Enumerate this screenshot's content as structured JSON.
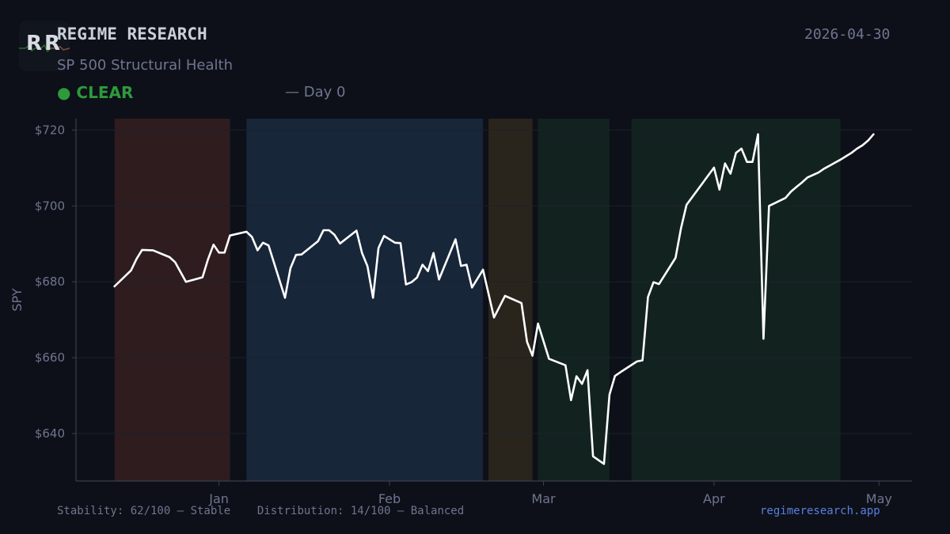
{
  "header": {
    "logo_text": "RR",
    "brand": "REGIME RESEARCH",
    "date": "2026-04-30",
    "subtitle": "SP 500 Structural Health",
    "status_dot": "●",
    "status": "CLEAR",
    "day": "— Day 0",
    "status_color": "#2e9a3c"
  },
  "footer": {
    "stability": "Stability: 62/100 — Stable",
    "distribution": "Distribution: 14/100 — Balanced",
    "site": "regimeresearch.app"
  },
  "chart_data": {
    "type": "line",
    "ylabel": "SPY",
    "ylim": [
      627.5,
      723
    ],
    "y_ticks": [
      640,
      660,
      680,
      700,
      720
    ],
    "y_tick_labels": [
      "$640",
      "$660",
      "$680",
      "$700",
      "$720"
    ],
    "x_ticks": [
      "2026-01-01",
      "2026-02-01",
      "2026-03-01",
      "2026-04-01",
      "2026-05-01"
    ],
    "x_tick_labels": [
      "Jan",
      "Feb",
      "Mar",
      "Apr",
      "May"
    ],
    "xlim": [
      "2025-12-06",
      "2026-05-07"
    ],
    "grid": true,
    "regimes": [
      {
        "start": "2025-12-13",
        "end": "2026-01-03",
        "color": "#2e1c1f"
      },
      {
        "start": "2026-01-06",
        "end": "2026-02-18",
        "color": "#18263a"
      },
      {
        "start": "2026-02-19",
        "end": "2026-02-27",
        "color": "#2a251c"
      },
      {
        "start": "2026-02-28",
        "end": "2026-03-13",
        "color": "#12231f"
      },
      {
        "start": "2026-03-17",
        "end": "2026-04-24",
        "color": "#12231f"
      }
    ],
    "series": [
      {
        "color": "#ffffff",
        "x": [
          "2025-12-13",
          "2025-12-16",
          "2025-12-17",
          "2025-12-18",
          "2025-12-20",
          "2025-12-23",
          "2025-12-24",
          "2025-12-26",
          "2025-12-29",
          "2025-12-30",
          "2025-12-31",
          "2026-01-01",
          "2026-01-02",
          "2026-01-03",
          "2026-01-06",
          "2026-01-07",
          "2026-01-08",
          "2026-01-09",
          "2026-01-10",
          "2026-01-13",
          "2026-01-14",
          "2026-01-15",
          "2026-01-16",
          "2026-01-19",
          "2026-01-20",
          "2026-01-21",
          "2026-01-22",
          "2026-01-23",
          "2026-01-26",
          "2026-01-27",
          "2026-01-28",
          "2026-01-29",
          "2026-01-30",
          "2026-01-31",
          "2026-02-02",
          "2026-02-03",
          "2026-02-04",
          "2026-02-05",
          "2026-02-06",
          "2026-02-07",
          "2026-02-08",
          "2026-02-09",
          "2026-02-10",
          "2026-02-13",
          "2026-02-14",
          "2026-02-15",
          "2026-02-16",
          "2026-02-18",
          "2026-02-20",
          "2026-02-22",
          "2026-02-25",
          "2026-02-26",
          "2026-02-27",
          "2026-02-28",
          "2026-03-02",
          "2026-03-05",
          "2026-03-06",
          "2026-03-07",
          "2026-03-08",
          "2026-03-09",
          "2026-03-10",
          "2026-03-12",
          "2026-03-13",
          "2026-03-14",
          "2026-03-15",
          "2026-03-18",
          "2026-03-19",
          "2026-03-20",
          "2026-03-21",
          "2026-03-22",
          "2026-03-25",
          "2026-03-26",
          "2026-03-27",
          "2026-04-01",
          "2026-04-02",
          "2026-04-03",
          "2026-04-04",
          "2026-04-05",
          "2026-04-06",
          "2026-04-07",
          "2026-04-08",
          "2026-04-09",
          "2026-04-10",
          "2026-04-11",
          "2026-04-14",
          "2026-04-15",
          "2026-04-16",
          "2026-04-17",
          "2026-04-18",
          "2026-04-20",
          "2026-04-21",
          "2026-04-22",
          "2026-04-23",
          "2026-04-24",
          "2026-04-25",
          "2026-04-26",
          "2026-04-27",
          "2026-04-28",
          "2026-04-29",
          "2026-04-30"
        ],
        "y": [
          678.8,
          683.0,
          686.0,
          688.4,
          688.3,
          686.5,
          685.2,
          680.0,
          681.2,
          685.9,
          689.8,
          687.7,
          687.7,
          692.2,
          693.2,
          691.8,
          688.3,
          690.3,
          689.6,
          675.8,
          683.6,
          687.1,
          687.2,
          690.7,
          693.6,
          693.6,
          692.4,
          690.1,
          693.5,
          687.6,
          684.1,
          675.8,
          688.9,
          692.1,
          690.3,
          690.2,
          679.3,
          679.9,
          681.1,
          684.5,
          682.8,
          687.6,
          680.6,
          691.2,
          684.2,
          684.5,
          678.5,
          683.2,
          670.6,
          676.3,
          674.4,
          664.2,
          660.5,
          669.0,
          659.7,
          658.0,
          648.8,
          655.1,
          653.1,
          656.7,
          634.0,
          632.0,
          650.3,
          655.2,
          656.2,
          659.0,
          659.3,
          676.0,
          679.9,
          679.4,
          686.3,
          694.1,
          700.3,
          710.1,
          704.3,
          711.2,
          708.5,
          714.0,
          715.1,
          711.6,
          711.6,
          718.9,
          665.0,
          700.0,
          702.1,
          703.8,
          705.0,
          706.2,
          707.5,
          708.8,
          709.8,
          710.6,
          711.4,
          712.2,
          713.1,
          714.0,
          715.1,
          716.0,
          717.2,
          718.9
        ]
      }
    ]
  }
}
